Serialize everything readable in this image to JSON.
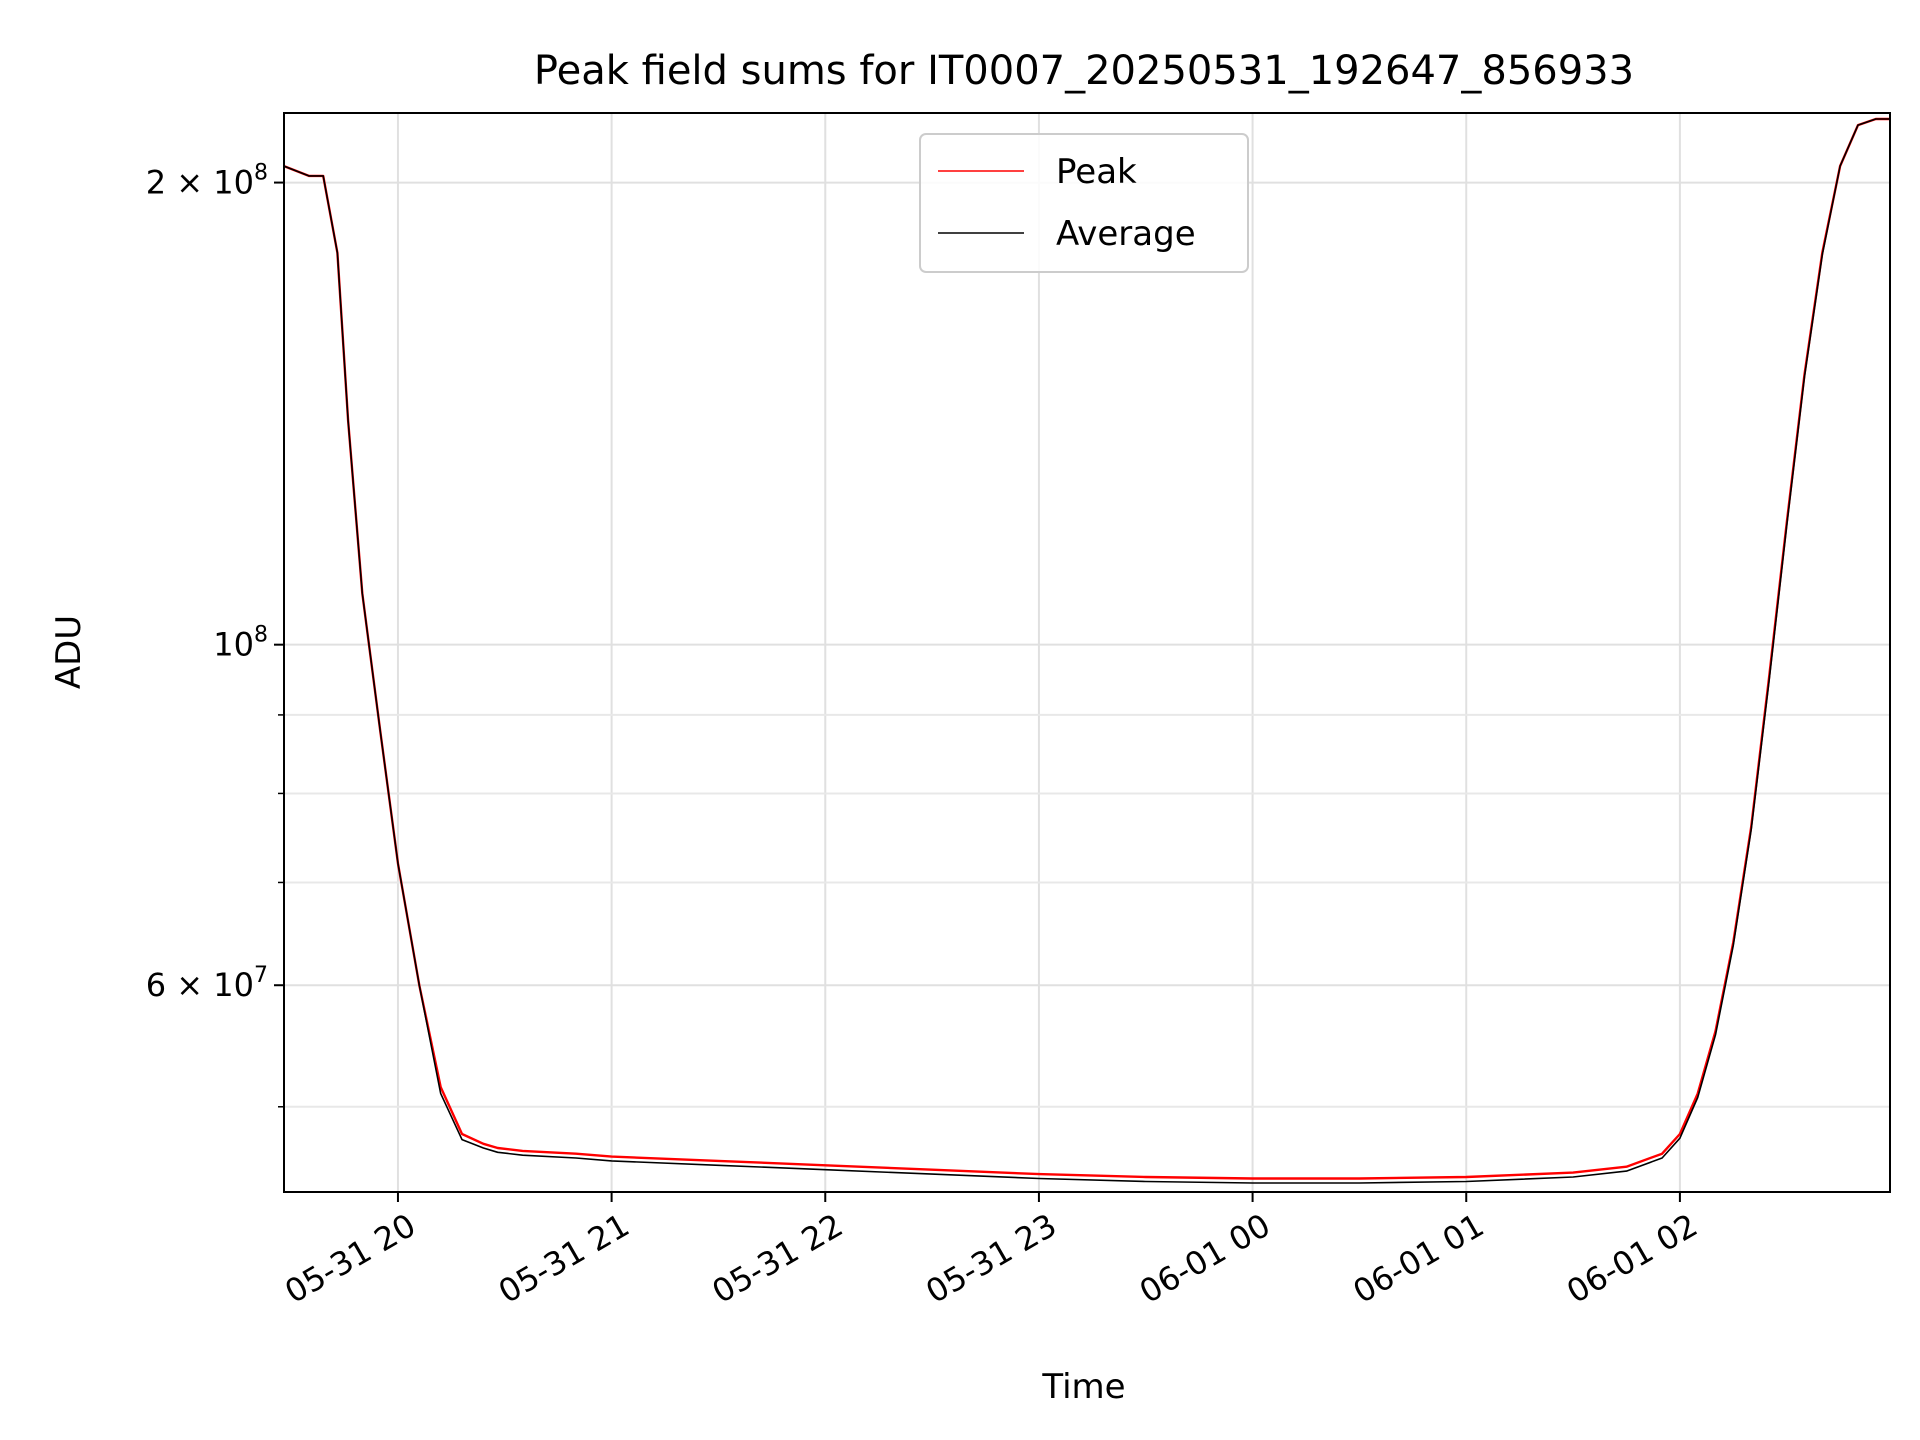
{
  "chart_data": {
    "type": "line",
    "title": "Peak field sums for IT0007_20250531_192647_856933",
    "xlabel": "Time",
    "ylabel": "ADU",
    "x_scale": "time",
    "y_scale": "log",
    "xlim": [
      "2025-05-31 19:28",
      "2025-06-01 02:59"
    ],
    "ylim": [
      44000000,
      222000000
    ],
    "x_ticks": [
      {
        "value": "2025-05-31 20:00",
        "label": "05-31 20"
      },
      {
        "value": "2025-05-31 21:00",
        "label": "05-31 21"
      },
      {
        "value": "2025-05-31 22:00",
        "label": "05-31 22"
      },
      {
        "value": "2025-05-31 23:00",
        "label": "05-31 23"
      },
      {
        "value": "2025-06-01 00:00",
        "label": "06-01 00"
      },
      {
        "value": "2025-06-01 01:00",
        "label": "06-01 01"
      },
      {
        "value": "2025-06-01 02:00",
        "label": "06-01 02"
      }
    ],
    "y_major_ticks": [
      {
        "value": 60000000,
        "label": "6 × 10",
        "exp": "7"
      },
      {
        "value": 100000000,
        "label": "10",
        "exp": "8"
      },
      {
        "value": 200000000,
        "label": "2 × 10",
        "exp": "8"
      }
    ],
    "y_minor_ticks": [
      50000000,
      70000000,
      80000000,
      90000000
    ],
    "grid": true,
    "legend": {
      "position": "top-center"
    },
    "series": [
      {
        "name": "Peak",
        "color": "#ff0000",
        "x": [
          "2025-05-31 19:28",
          "2025-05-31 19:35",
          "2025-05-31 19:39",
          "2025-05-31 19:43",
          "2025-05-31 19:46",
          "2025-05-31 19:50",
          "2025-05-31 19:55",
          "2025-05-31 20:00",
          "2025-05-31 20:06",
          "2025-05-31 20:12",
          "2025-05-31 20:18",
          "2025-05-31 20:24",
          "2025-05-31 20:28",
          "2025-05-31 20:35",
          "2025-05-31 20:50",
          "2025-05-31 21:00",
          "2025-05-31 21:30",
          "2025-05-31 22:00",
          "2025-05-31 22:30",
          "2025-05-31 23:00",
          "2025-05-31 23:30",
          "2025-06-01 00:00",
          "2025-06-01 00:30",
          "2025-06-01 01:00",
          "2025-06-01 01:30",
          "2025-06-01 01:45",
          "2025-06-01 01:55",
          "2025-06-01 02:00",
          "2025-06-01 02:05",
          "2025-06-01 02:10",
          "2025-06-01 02:15",
          "2025-06-01 02:20",
          "2025-06-01 02:25",
          "2025-06-01 02:30",
          "2025-06-01 02:35",
          "2025-06-01 02:40",
          "2025-06-01 02:45",
          "2025-06-01 02:50",
          "2025-06-01 02:55",
          "2025-06-01 02:59"
        ],
        "values": [
          205000000,
          202000000,
          202000000,
          180000000,
          140000000,
          108000000,
          88000000,
          72000000,
          60000000,
          51500000,
          48000000,
          47300000,
          47000000,
          46800000,
          46600000,
          46400000,
          46100000,
          45800000,
          45500000,
          45200000,
          45000000,
          44900000,
          44900000,
          45000000,
          45300000,
          45700000,
          46600000,
          48000000,
          51000000,
          56000000,
          64000000,
          76000000,
          95000000,
          120000000,
          150000000,
          180000000,
          205000000,
          218000000,
          220000000,
          220000000
        ]
      },
      {
        "name": "Average",
        "color": "#000000",
        "x": [
          "2025-05-31 19:28",
          "2025-05-31 19:35",
          "2025-05-31 19:39",
          "2025-05-31 19:43",
          "2025-05-31 19:46",
          "2025-05-31 19:50",
          "2025-05-31 19:55",
          "2025-05-31 20:00",
          "2025-05-31 20:06",
          "2025-05-31 20:12",
          "2025-05-31 20:18",
          "2025-05-31 20:24",
          "2025-05-31 20:28",
          "2025-05-31 20:35",
          "2025-05-31 20:50",
          "2025-05-31 21:00",
          "2025-05-31 21:30",
          "2025-05-31 22:00",
          "2025-05-31 22:30",
          "2025-05-31 23:00",
          "2025-05-31 23:30",
          "2025-06-01 00:00",
          "2025-06-01 00:30",
          "2025-06-01 01:00",
          "2025-06-01 01:30",
          "2025-06-01 01:45",
          "2025-06-01 01:55",
          "2025-06-01 02:00",
          "2025-06-01 02:05",
          "2025-06-01 02:10",
          "2025-06-01 02:15",
          "2025-06-01 02:20",
          "2025-06-01 02:25",
          "2025-06-01 02:30",
          "2025-06-01 02:35",
          "2025-06-01 02:40",
          "2025-06-01 02:45",
          "2025-06-01 02:50",
          "2025-06-01 02:55",
          "2025-06-01 02:59"
        ],
        "values": [
          205000000,
          202000000,
          202000000,
          180000000,
          140000000,
          108000000,
          88000000,
          72000000,
          60000000,
          51000000,
          47600000,
          47000000,
          46700000,
          46500000,
          46300000,
          46100000,
          45800000,
          45500000,
          45200000,
          44900000,
          44700000,
          44600000,
          44600000,
          44700000,
          45000000,
          45400000,
          46300000,
          47700000,
          50700000,
          55700000,
          63700000,
          75700000,
          94500000,
          119500000,
          149500000,
          179500000,
          205000000,
          218000000,
          220000000,
          220000000
        ]
      }
    ]
  }
}
